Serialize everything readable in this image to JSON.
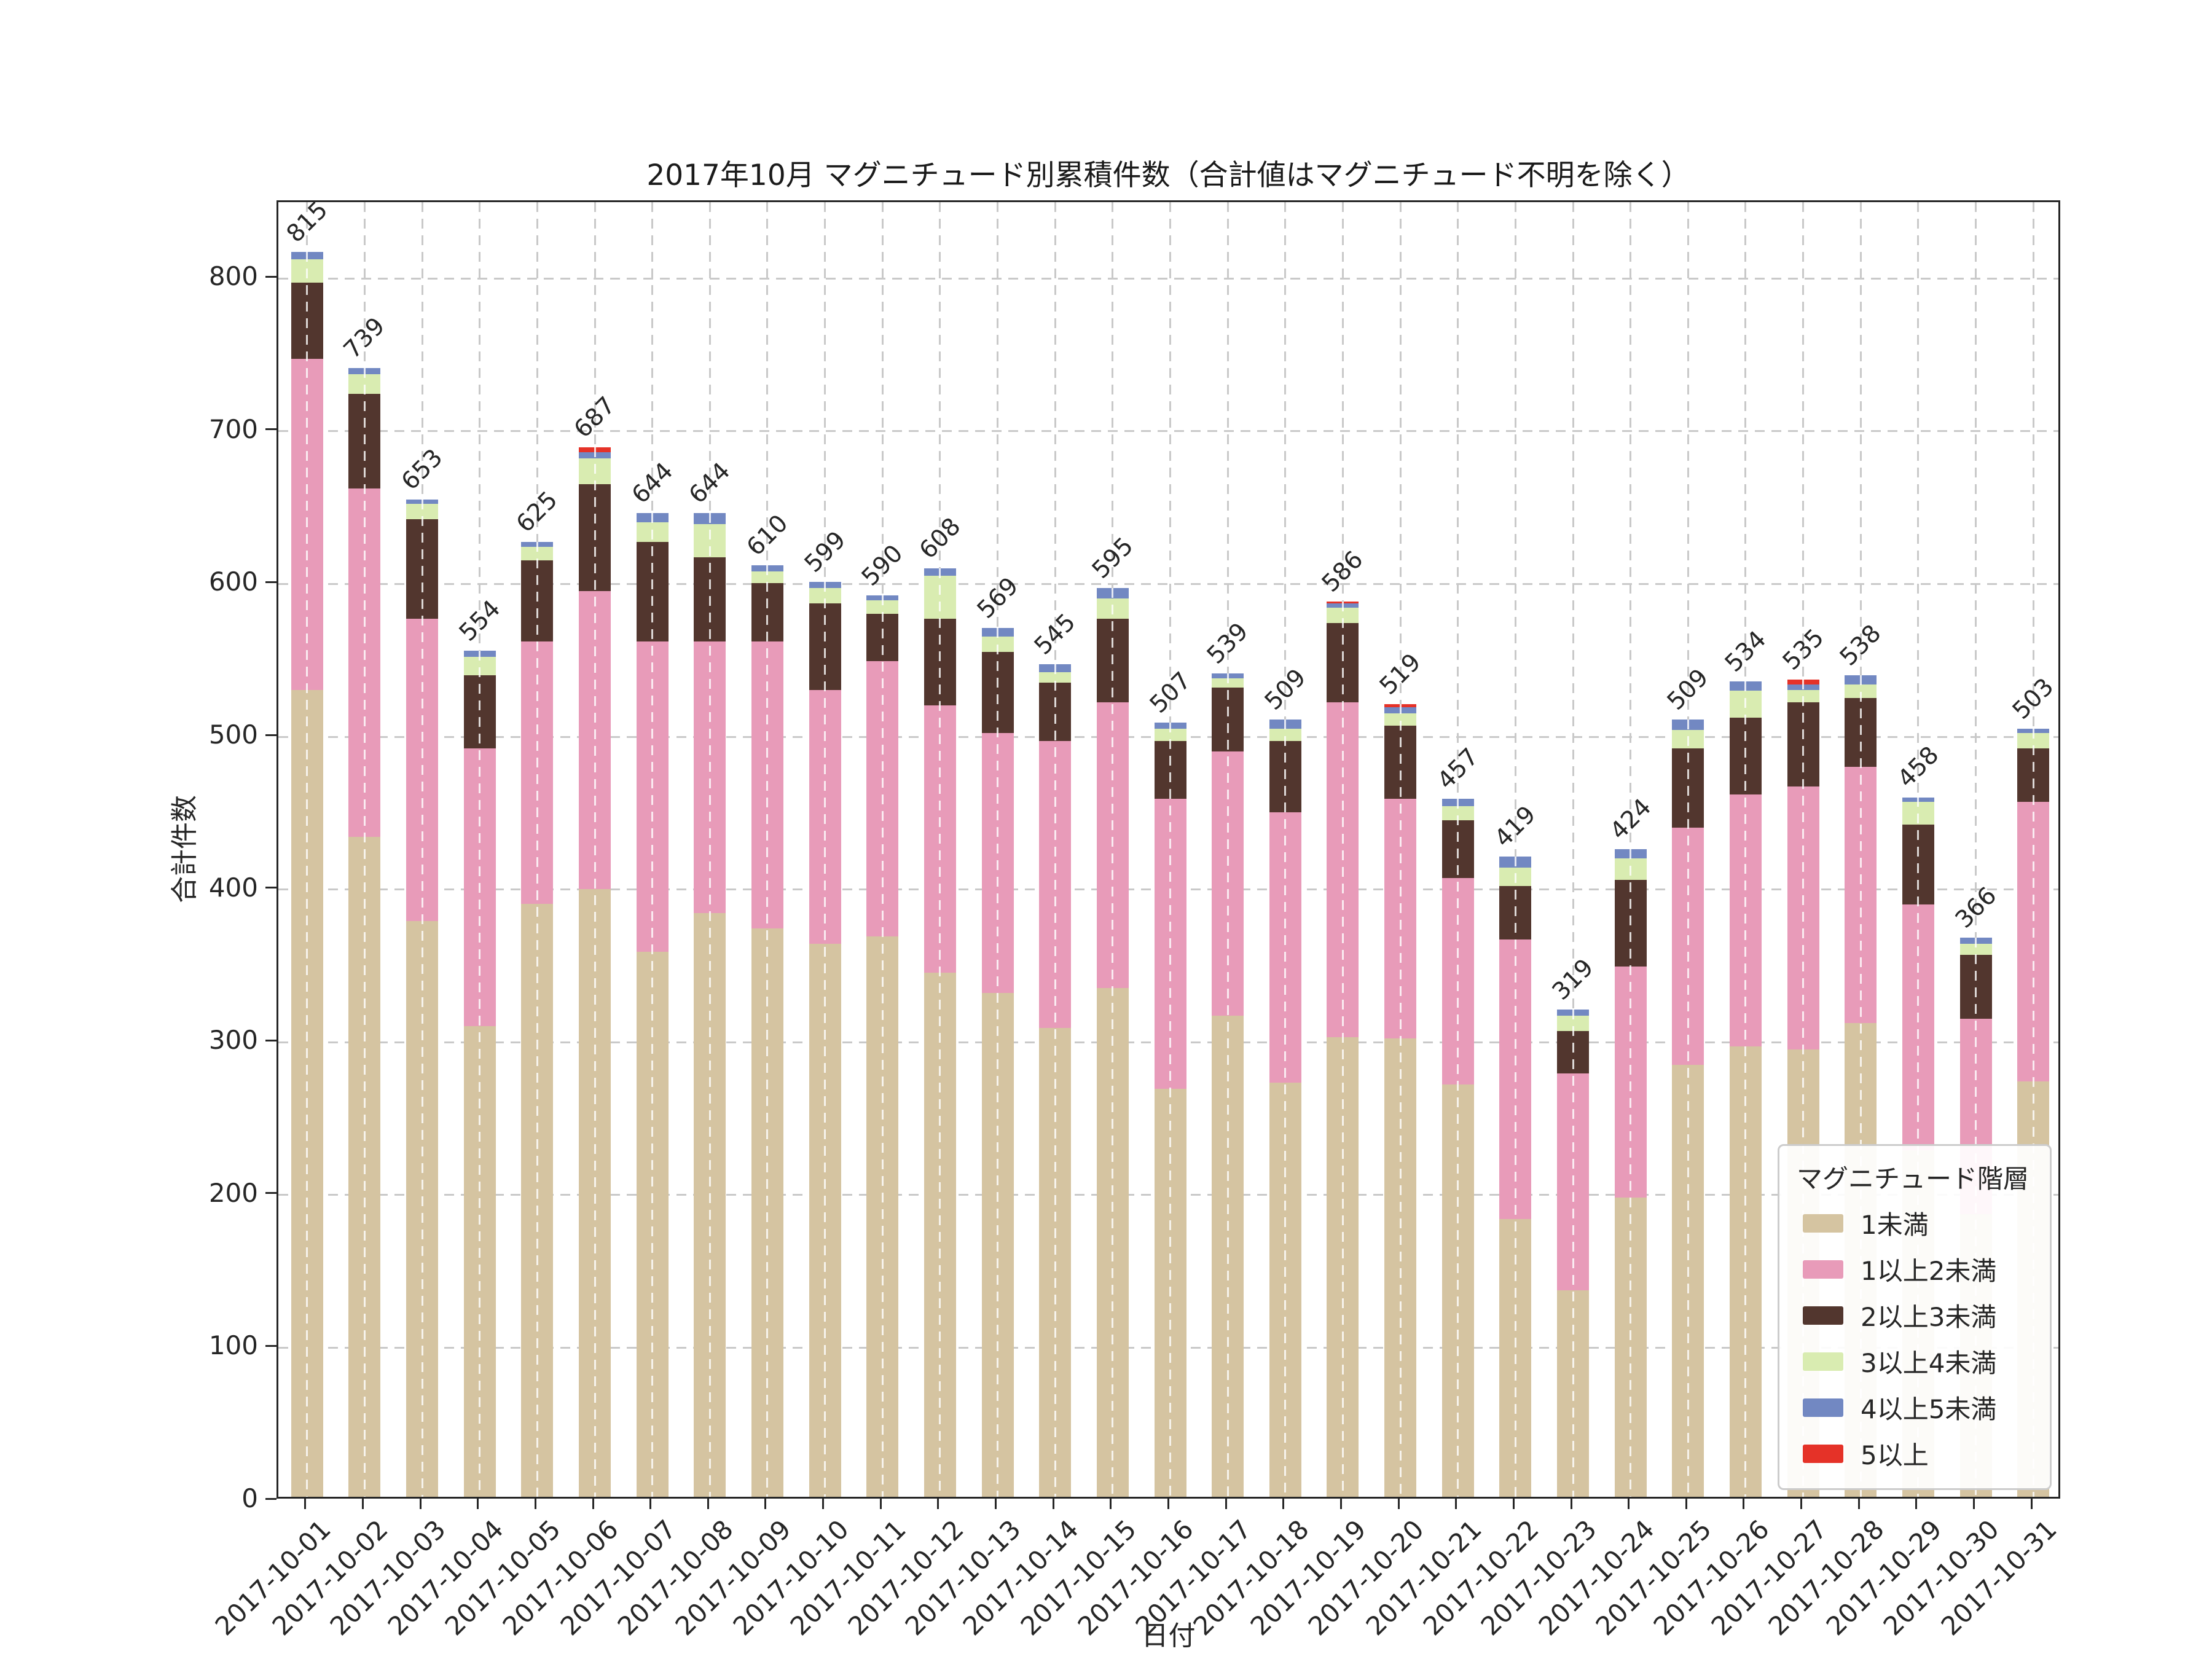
{
  "chart_data": {
    "type": "bar",
    "stacked": true,
    "title": "2017年10月 マグニチュード別累積件数（合計値はマグニチュード不明を除く）",
    "xlabel": "日付",
    "ylabel": "合計件数",
    "legend_title": "マグニチュード階層",
    "legend_position": "lower right",
    "grid": true,
    "ylim": [
      0,
      850
    ],
    "yticks": [
      0,
      100,
      200,
      300,
      400,
      500,
      600,
      700,
      800
    ],
    "categories": [
      "2017-10-01",
      "2017-10-02",
      "2017-10-03",
      "2017-10-04",
      "2017-10-05",
      "2017-10-06",
      "2017-10-07",
      "2017-10-08",
      "2017-10-09",
      "2017-10-10",
      "2017-10-11",
      "2017-10-12",
      "2017-10-13",
      "2017-10-14",
      "2017-10-15",
      "2017-10-16",
      "2017-10-17",
      "2017-10-18",
      "2017-10-19",
      "2017-10-20",
      "2017-10-21",
      "2017-10-22",
      "2017-10-23",
      "2017-10-24",
      "2017-10-25",
      "2017-10-26",
      "2017-10-27",
      "2017-10-28",
      "2017-10-29",
      "2017-10-30",
      "2017-10-31"
    ],
    "totals": [
      815,
      739,
      653,
      554,
      625,
      687,
      644,
      644,
      610,
      599,
      590,
      608,
      569,
      545,
      595,
      507,
      539,
      509,
      586,
      519,
      457,
      419,
      319,
      424,
      509,
      534,
      535,
      538,
      458,
      366,
      503
    ],
    "series": [
      {
        "name": "1未満",
        "color": "#d5c4a1",
        "values": [
          528,
          432,
          377,
          308,
          388,
          398,
          357,
          382,
          372,
          362,
          367,
          343,
          330,
          307,
          333,
          267,
          315,
          271,
          301,
          300,
          270,
          182,
          135,
          196,
          283,
          295,
          293,
          310,
          227,
          185,
          272
        ]
      },
      {
        "name": "1以上2未満",
        "color": "#e89bb9",
        "values": [
          217,
          228,
          198,
          182,
          172,
          195,
          203,
          178,
          188,
          166,
          180,
          175,
          170,
          188,
          187,
          190,
          173,
          177,
          219,
          157,
          135,
          183,
          142,
          151,
          155,
          165,
          172,
          168,
          161,
          128,
          183
        ]
      },
      {
        "name": "2以上3未満",
        "color": "#52362e",
        "values": [
          50,
          62,
          65,
          48,
          53,
          70,
          65,
          55,
          38,
          57,
          31,
          57,
          53,
          38,
          55,
          38,
          42,
          47,
          52,
          48,
          38,
          35,
          28,
          57,
          52,
          50,
          55,
          45,
          52,
          42,
          35
        ]
      },
      {
        "name": "3以上4未満",
        "color": "#d9ecb1",
        "values": [
          15,
          13,
          10,
          12,
          9,
          17,
          13,
          22,
          8,
          10,
          9,
          28,
          10,
          7,
          13,
          8,
          6,
          8,
          10,
          8,
          9,
          12,
          10,
          14,
          12,
          18,
          8,
          9,
          15,
          7,
          10
        ]
      },
      {
        "name": "4以上5未満",
        "color": "#7288c2",
        "values": [
          5,
          4,
          3,
          4,
          3,
          4,
          6,
          7,
          4,
          4,
          3,
          5,
          6,
          5,
          7,
          4,
          3,
          6,
          3,
          4,
          5,
          7,
          4,
          6,
          7,
          6,
          4,
          6,
          3,
          4,
          3
        ]
      },
      {
        "name": "5以上",
        "color": "#e53228",
        "values": [
          0,
          0,
          0,
          0,
          0,
          3,
          0,
          0,
          0,
          0,
          0,
          0,
          0,
          0,
          0,
          0,
          0,
          0,
          1,
          2,
          0,
          0,
          0,
          0,
          0,
          0,
          3,
          0,
          0,
          0,
          0
        ]
      }
    ]
  }
}
